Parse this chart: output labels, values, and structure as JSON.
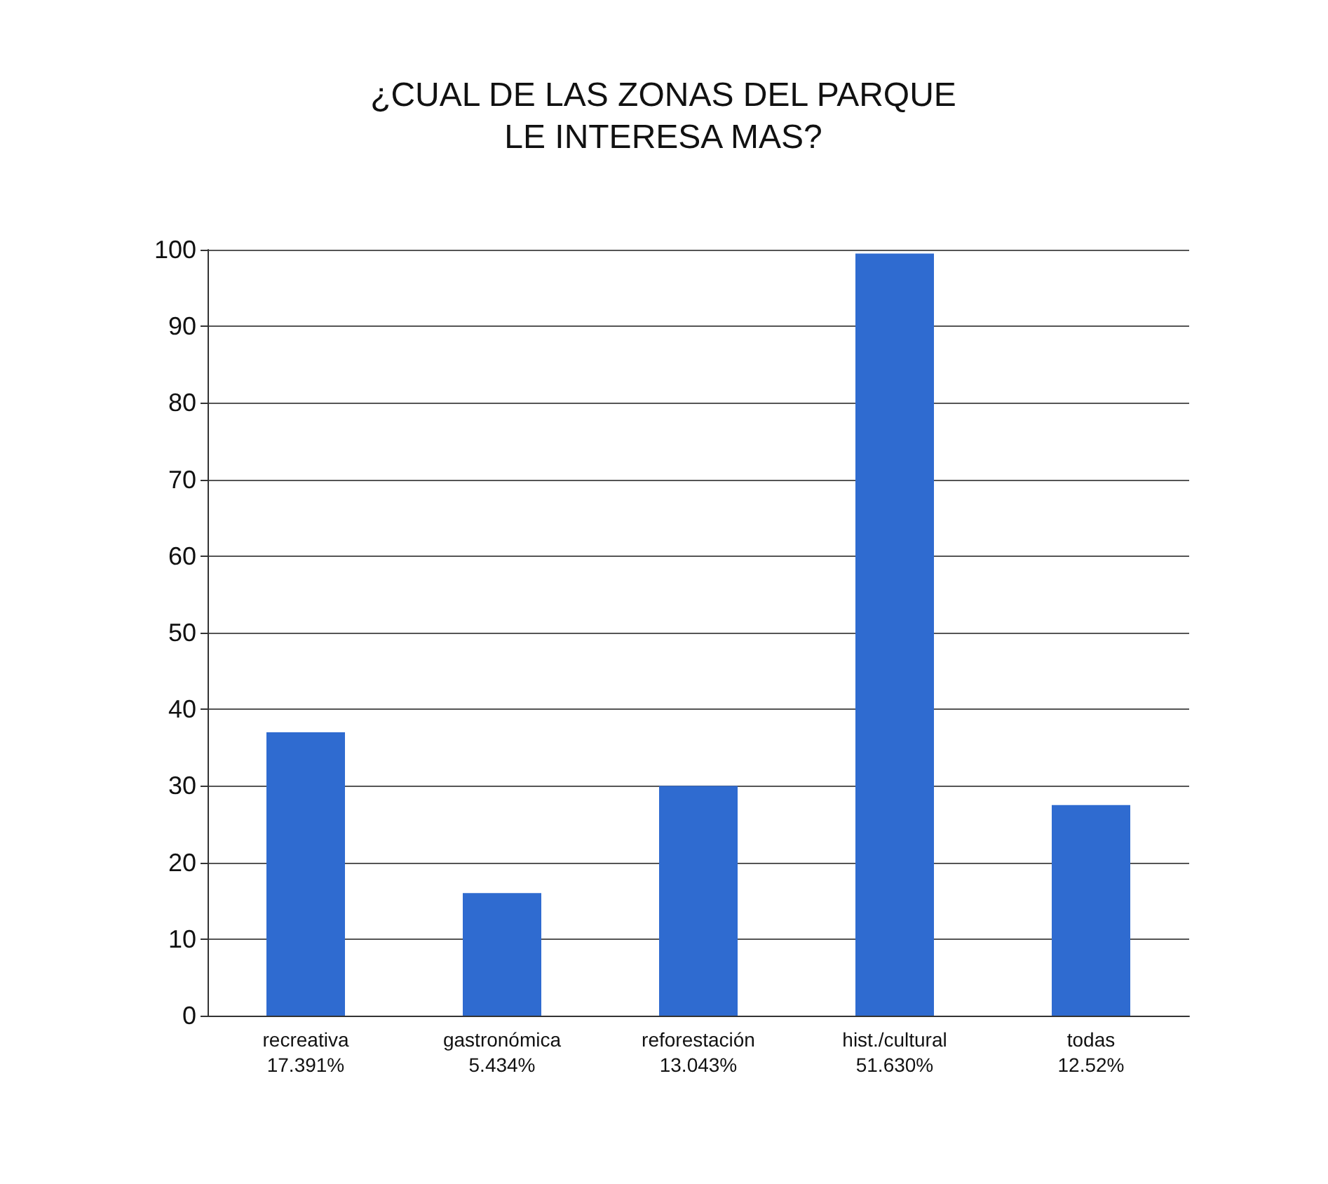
{
  "chart_data": {
    "type": "bar",
    "title": "¿CUAL DE LAS ZONAS DEL PARQUE\nLE INTERESA MAS?",
    "categories": [
      "recreativa\n17.391%",
      "gastronómica\n5.434%",
      "reforestación\n13.043%",
      "hist./cultural\n51.630%",
      "todas\n12.52%"
    ],
    "values": [
      37,
      16,
      30,
      99.5,
      27.5
    ],
    "color": "#2f6bd0",
    "ylim": [
      0,
      100
    ],
    "yticks": [
      0,
      10,
      20,
      30,
      40,
      50,
      60,
      70,
      80,
      90,
      100
    ],
    "grid": true
  }
}
